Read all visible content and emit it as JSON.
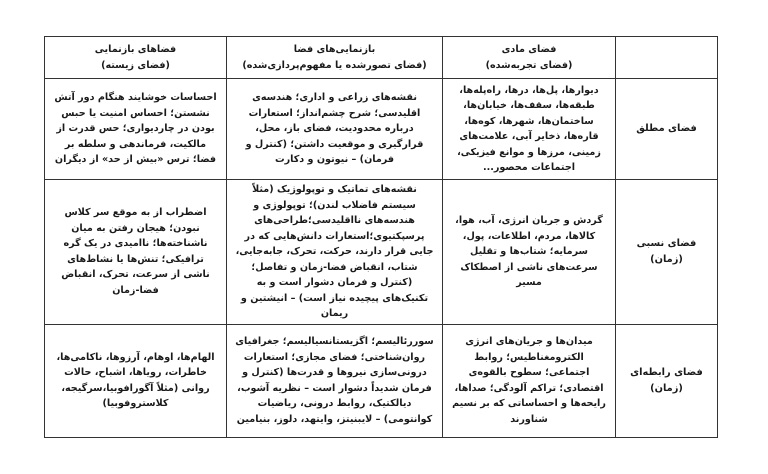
{
  "table": {
    "headers": [
      "",
      "فضای مادی\n(فضای تجربه‌شده)",
      "بازنمایی‌های فضا\n(فضای تصورشده یا مفهوم‌پردازی‌شده)",
      "فضاهای بازنمایی\n(فضای زیسته)"
    ],
    "rows": [
      {
        "label": "فضای مطلق",
        "cells": [
          "دیوارها، پل‌ها، درها، راه‌پله‌ها، طبقه‌ها، سقف‌ها، خیابان‌ها، ساختمان‌ها، شهرها، کوه‌ها، قاره‌ها، ذخایر آبی، علامت‌های زمینی، مرزها و موانع فیزیکی، اجتماعات محصور...",
          "نقشه‌های زراعی و اداری؛ هندسه‌ی اقلیدسی؛ شرح چشم‌انداز؛ استعارات درباره محدودیت، فضای باز، محل، قرارگیری و موقعیت داشتن؛ (کنترل و فرمان) – نیوتون و دکارت",
          "احساسات خوشایند هنگام دور آتش نشستن؛ احساس امنیت یا حبس بودن در چاردیواری؛ حس قدرت از مالکیت، فرماندهی و سلطه بر فضا؛ ترس «بیش از حد» از دیگران"
        ]
      },
      {
        "label": "فضای نسبی\n(زمان)",
        "cells": [
          "گردش و جریان انرژی، آب، هوا، کالاها، مردم، اطلاعات، پول، سرمایه؛ شتاب‌ها و تقلیل سرعت‌های ناشی از اصطکاک مسیر",
          "نقشه‌های تماتیک و توپولوژیک (مثلاً سیستم فاضلاب لندن)؛ توپولوژی و هندسه‌های نااقلیدسی؛طراحی‌های پرسپکتیوی؛استعارات دانش‌هایی که در جایی قرار دارند، حرکت، تحرک، جابه‌جایی، شتاب، انقباض فضا-زمان و تفاصل؛ (کنترل و فرمان دشوار است و به تکنیک‌های پیچیده نیاز است) – انیشتین و ریمان",
          "اضطراب از به موقع سر کلاس نبودن؛ هیجان رفتن به میان ناشناخته‌ها؛ ناامیدی در یک گره ترافیکی؛ تنش‌ها یا نشاط‌های ناشی از سرعت، تحرک، انقباض فضا-زمان"
        ]
      },
      {
        "label": "فضای رابطه‌ای\n(زمان)",
        "cells": [
          "میدان‌ها و جریان‌های انرژی الکترومغناطیس؛ روابط اجتماعی؛ سطوح بالقوه‌ی اقتصادی؛ تراکم آلودگی؛ صداها، رایحه‌ها و احساساتی که بر نسیم شناورند",
          "سوررئالیسم؛ اگزیستانسیالیسم؛ جغرافیای روان‌شناختی؛ فضای مجازی؛ استعارات درونی‌سازی نیروها و قدرت‌ها (کنترل و فرمان شدیداً دشوار است – نظریه آشوب، دیالکتیک، روابط درونی، ریاضیات کوانتومی) – لایبنیتز، وایتهد، دلوز، بنیامین",
          "الهام‌ها، اوهام، آرزوها، ناکامی‌ها، خاطرات، رویاها، اشباح، حالات روانی (مثلاً آگورافوبیا،سرگیجه، کلاستروفوبیا)"
        ]
      }
    ]
  }
}
